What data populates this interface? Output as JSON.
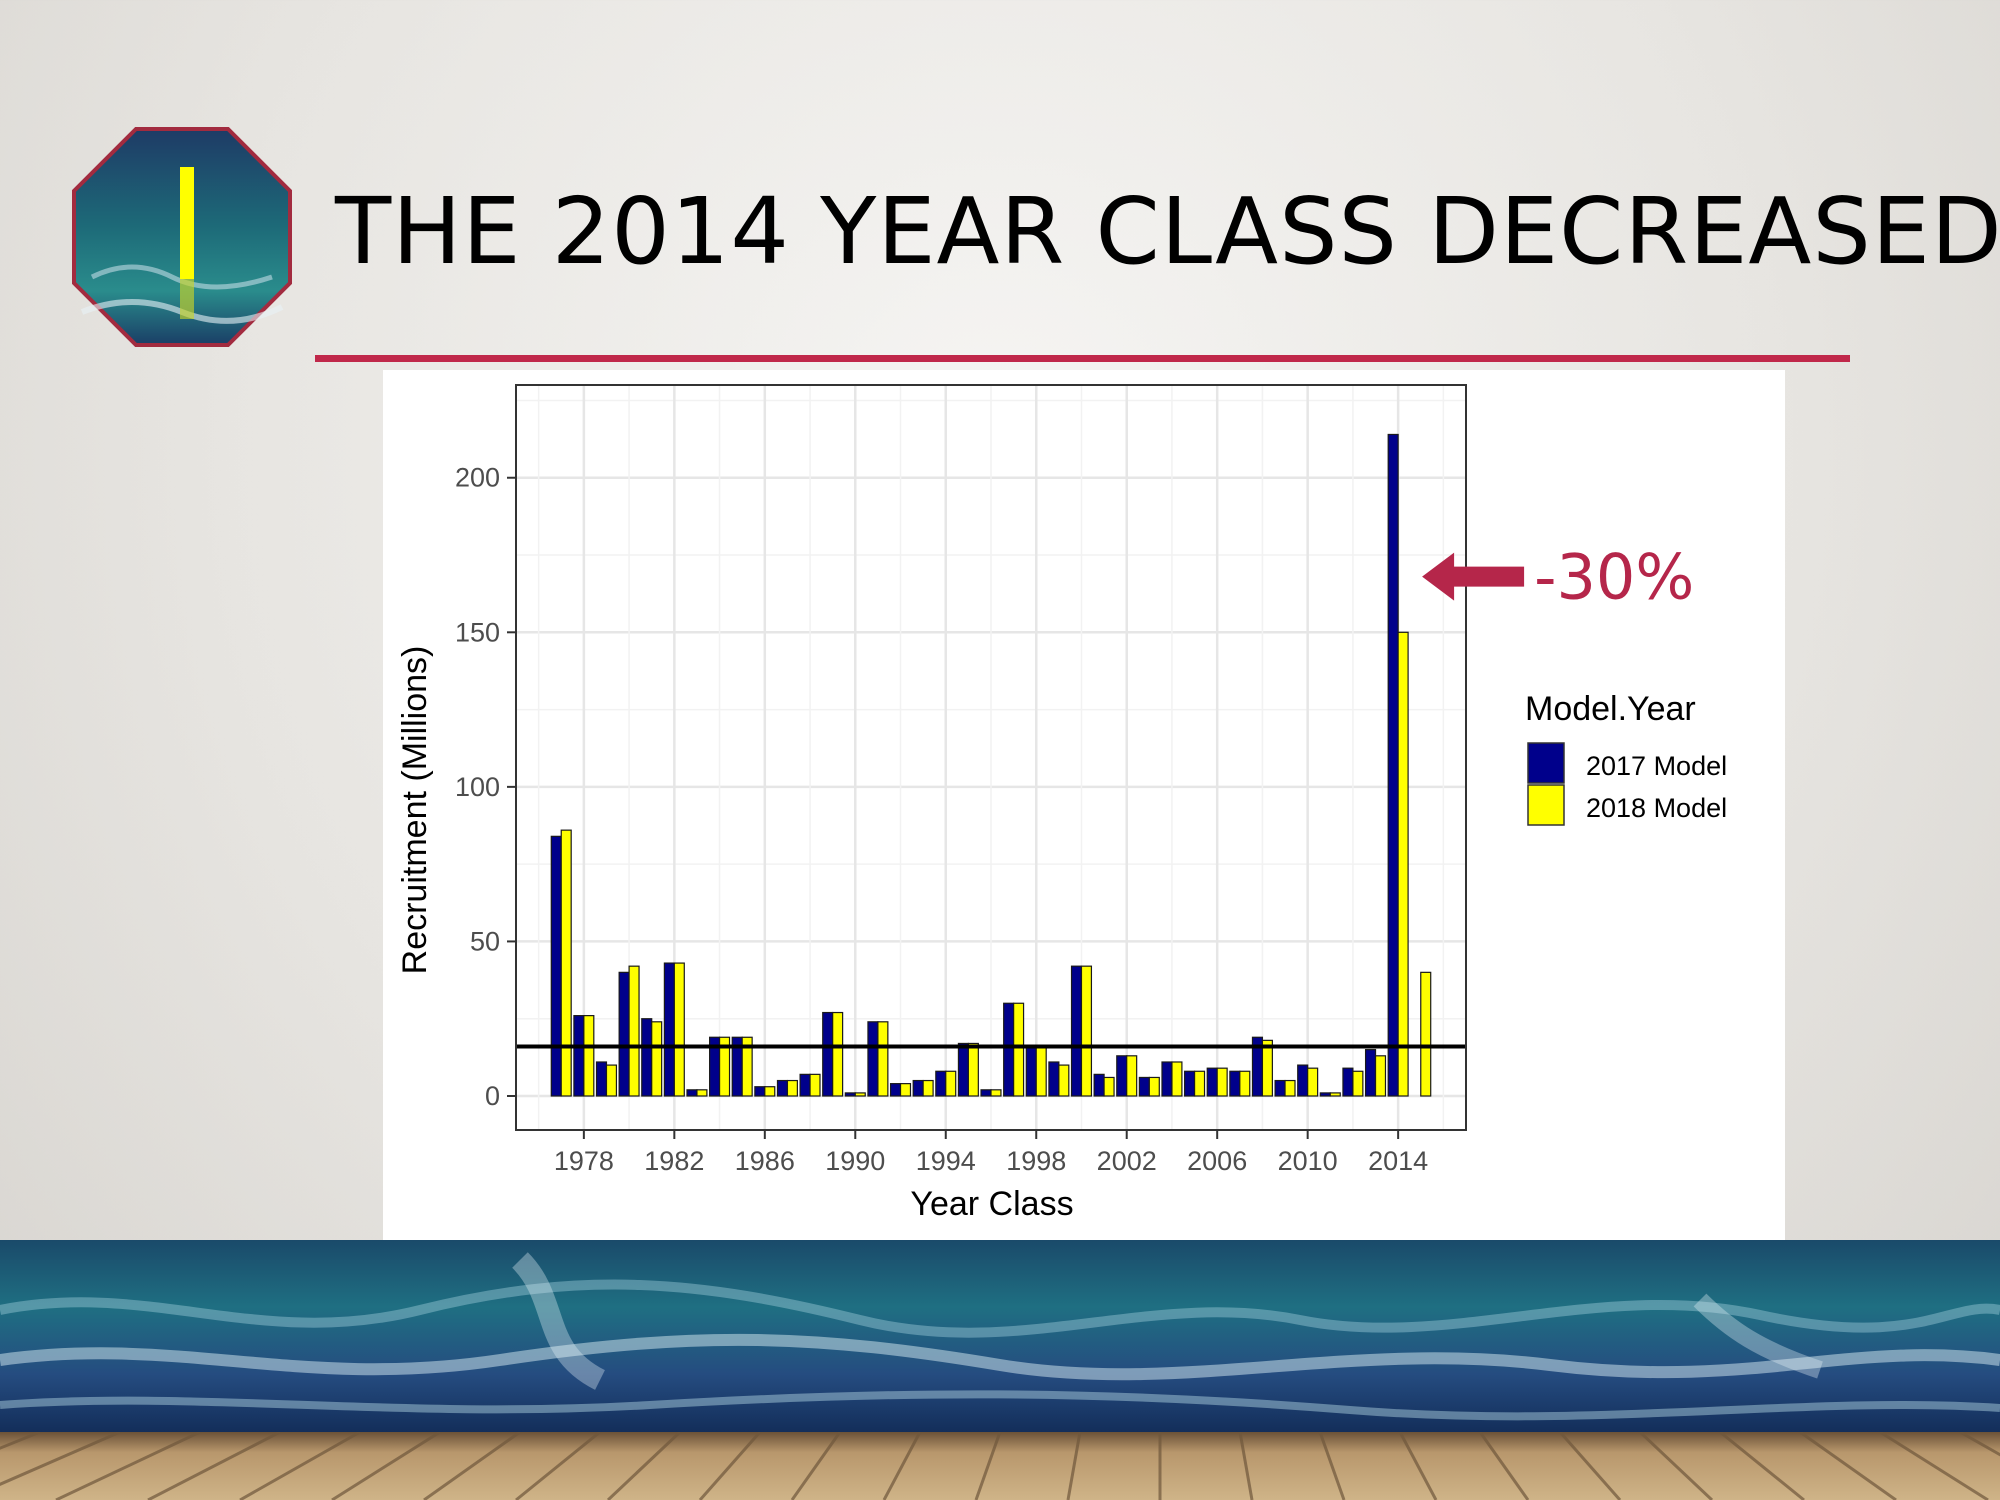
{
  "slide": {
    "title": "THE 2014 YEAR CLASS DECREASED",
    "accent_color": "#c0284a",
    "logo_icon": "octagon-wave-icon"
  },
  "chart_data": {
    "type": "bar",
    "title": "",
    "xlabel": "Year Class",
    "ylabel": "Recruitment (Millions)",
    "ylim": [
      0,
      230
    ],
    "yticks": [
      0,
      50,
      100,
      150,
      200
    ],
    "xticks": [
      "1978",
      "1982",
      "1986",
      "1990",
      "1994",
      "1998",
      "2002",
      "2006",
      "2010",
      "2014"
    ],
    "grid": true,
    "legend_title": "Model.Year",
    "legend_position": "right",
    "x": [
      1977,
      1978,
      1979,
      1980,
      1981,
      1982,
      1983,
      1984,
      1985,
      1986,
      1987,
      1988,
      1989,
      1990,
      1991,
      1992,
      1993,
      1994,
      1995,
      1996,
      1997,
      1998,
      1999,
      2000,
      2001,
      2002,
      2003,
      2004,
      2005,
      2006,
      2007,
      2008,
      2009,
      2010,
      2011,
      2012,
      2013,
      2014,
      2015
    ],
    "series": [
      {
        "name": "2017 Model",
        "color": "#00008b",
        "values": [
          84,
          26,
          11,
          40,
          25,
          43,
          2,
          19,
          19,
          3,
          5,
          7,
          27,
          1,
          24,
          4,
          5,
          8,
          17,
          2,
          30,
          16,
          11,
          42,
          7,
          13,
          6,
          11,
          8,
          9,
          8,
          19,
          5,
          10,
          1,
          9,
          15,
          214,
          null
        ]
      },
      {
        "name": "2018 Model",
        "color": "#ffff00",
        "values": [
          86,
          26,
          10,
          42,
          24,
          43,
          2,
          19,
          19,
          3,
          5,
          7,
          27,
          1,
          24,
          4,
          5,
          8,
          17,
          2,
          30,
          16,
          10,
          42,
          6,
          13,
          6,
          11,
          8,
          9,
          8,
          18,
          5,
          9,
          1,
          8,
          13,
          150,
          40
        ]
      }
    ],
    "reference_line": 16,
    "annotation": {
      "text": "-30%",
      "target_year": 2014,
      "color": "#b5264a"
    }
  }
}
